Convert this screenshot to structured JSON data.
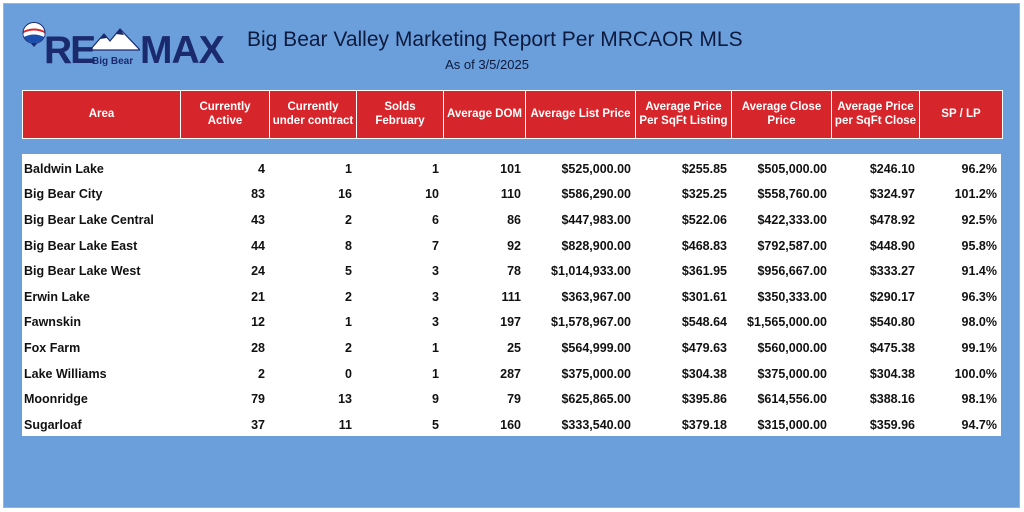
{
  "logo": {
    "brand": "RE/MAX",
    "re": "RE",
    "max": "MAX",
    "sub": "Big Bear"
  },
  "title": "Big Bear Valley Marketing Report Per MRCAOR MLS",
  "subtitle": "As of 3/5/2025",
  "columns": [
    "Area",
    "Currently Active",
    "Currently under contract",
    "Solds February",
    "Average DOM",
    "Average List Price",
    "Average Price Per SqFt Listing",
    "Average Close Price",
    "Average Price per SqFt Close",
    "SP / LP"
  ],
  "rows": [
    [
      "Baldwin Lake",
      "4",
      "1",
      "1",
      "101",
      "$525,000.00",
      "$255.85",
      "$505,000.00",
      "$246.10",
      "96.2%"
    ],
    [
      "Big Bear City",
      "83",
      "16",
      "10",
      "110",
      "$586,290.00",
      "$325.25",
      "$558,760.00",
      "$324.97",
      "101.2%"
    ],
    [
      "Big Bear Lake Central",
      "43",
      "2",
      "6",
      "86",
      "$447,983.00",
      "$522.06",
      "$422,333.00",
      "$478.92",
      "92.5%"
    ],
    [
      "Big Bear Lake East",
      "44",
      "8",
      "7",
      "92",
      "$828,900.00",
      "$468.83",
      "$792,587.00",
      "$448.90",
      "95.8%"
    ],
    [
      "Big Bear Lake West",
      "24",
      "5",
      "3",
      "78",
      "$1,014,933.00",
      "$361.95",
      "$956,667.00",
      "$333.27",
      "91.4%"
    ],
    [
      "Erwin Lake",
      "21",
      "2",
      "3",
      "111",
      "$363,967.00",
      "$301.61",
      "$350,333.00",
      "$290.17",
      "96.3%"
    ],
    [
      "Fawnskin",
      "12",
      "1",
      "3",
      "197",
      "$1,578,967.00",
      "$548.64",
      "$1,565,000.00",
      "$540.80",
      "98.0%"
    ],
    [
      "Fox Farm",
      "28",
      "2",
      "1",
      "25",
      "$564,999.00",
      "$479.63",
      "$560,000.00",
      "$475.38",
      "99.1%"
    ],
    [
      "Lake Williams",
      "2",
      "0",
      "1",
      "287",
      "$375,000.00",
      "$304.38",
      "$375,000.00",
      "$304.38",
      "100.0%"
    ],
    [
      "Moonridge",
      "79",
      "13",
      "9",
      "79",
      "$625,865.00",
      "$395.86",
      "$614,556.00",
      "$388.16",
      "98.1%"
    ],
    [
      "Sugarloaf",
      "37",
      "11",
      "5",
      "160",
      "$333,540.00",
      "$379.18",
      "$315,000.00",
      "$359.96",
      "94.7%"
    ]
  ],
  "colors": {
    "header_bg": "#d6262c",
    "page_bg": "#6a9fdc",
    "brand_blue": "#1a2a6c"
  }
}
